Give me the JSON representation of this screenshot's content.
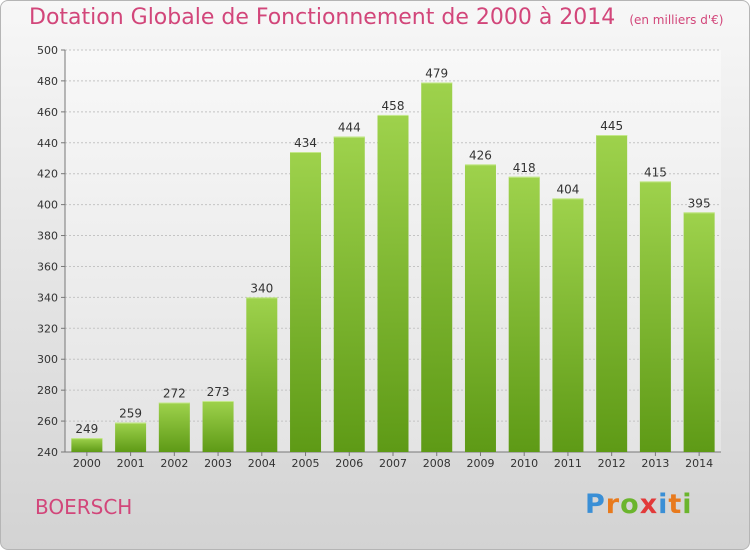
{
  "header": {
    "title": "Dotation Globale de Fonctionnement de 2000 à 2014",
    "unit": "(en milliers d'€)"
  },
  "footer": {
    "commune": "BOERSCH",
    "brand": "Proxiti"
  },
  "colors": {
    "accent": "#d2467a",
    "bar_top": "#9ed24c",
    "bar_bottom": "#5e9a16"
  },
  "chart_data": {
    "type": "bar",
    "title": "Dotation Globale de Fonctionnement de 2000 à 2014",
    "subtitle": "(en milliers d'€)",
    "xlabel": "",
    "ylabel": "",
    "categories": [
      "2000",
      "2001",
      "2002",
      "2003",
      "2004",
      "2005",
      "2006",
      "2007",
      "2008",
      "2009",
      "2010",
      "2011",
      "2012",
      "2013",
      "2014"
    ],
    "values": [
      249,
      259,
      272,
      273,
      340,
      434,
      444,
      458,
      479,
      426,
      418,
      404,
      445,
      415,
      395
    ],
    "ylim": [
      240,
      500
    ],
    "yticks": [
      240,
      260,
      280,
      300,
      320,
      340,
      360,
      380,
      400,
      420,
      440,
      460,
      480,
      500
    ],
    "grid": true,
    "legend": "none"
  }
}
